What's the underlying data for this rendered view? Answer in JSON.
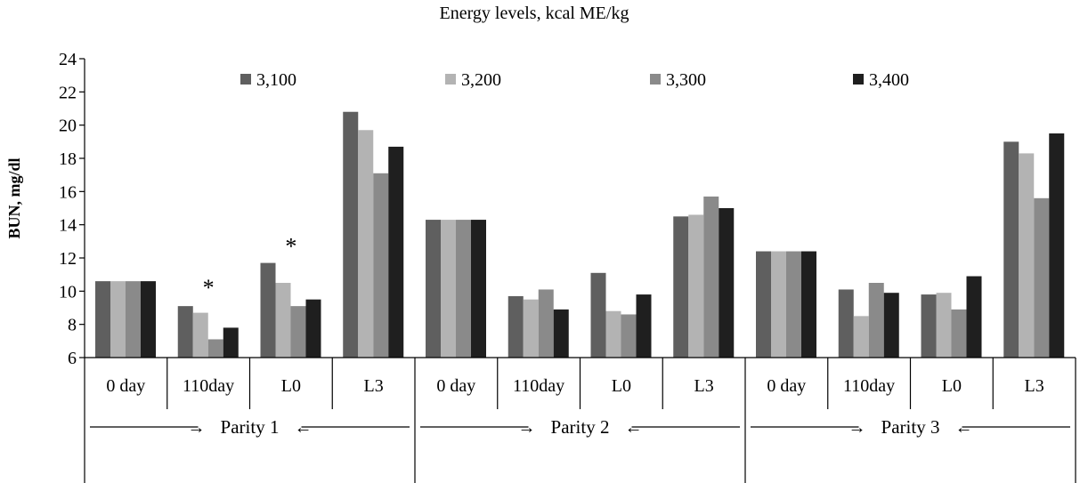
{
  "chart_data": {
    "type": "bar",
    "title": "Energy levels, kcal ME/kg",
    "xlabel": "",
    "ylabel": "BUN, mg/dl",
    "ylim": [
      6,
      24
    ],
    "yticks": [
      6,
      8,
      10,
      12,
      14,
      16,
      18,
      20,
      22,
      24
    ],
    "grid": false,
    "legend_position": "top",
    "categories": [
      "0 day",
      "110day",
      "L0",
      "L3",
      "0 day",
      "110day",
      "L0",
      "L3",
      "0 day",
      "110day",
      "L0",
      "L3"
    ],
    "groups": [
      {
        "label": "Parity 1",
        "arrow_left": "→",
        "arrow_right": "←"
      },
      {
        "label": "Parity 2",
        "arrow_left": "→",
        "arrow_right": "←"
      },
      {
        "label": "Parity 3",
        "arrow_left": "→",
        "arrow_right": "←"
      }
    ],
    "series": [
      {
        "name": "3,100",
        "color": "#5f5f5f",
        "values": [
          10.6,
          9.1,
          11.7,
          20.8,
          14.3,
          9.7,
          11.1,
          14.5,
          12.4,
          10.1,
          9.8,
          19.0
        ]
      },
      {
        "name": "3,200",
        "color": "#b3b3b3",
        "values": [
          10.6,
          8.7,
          10.5,
          19.7,
          14.3,
          9.5,
          8.8,
          14.6,
          12.4,
          8.5,
          9.9,
          18.3
        ]
      },
      {
        "name": "3,300",
        "color": "#8a8a8a",
        "values": [
          10.6,
          7.1,
          9.1,
          17.1,
          14.3,
          10.1,
          8.6,
          15.7,
          12.4,
          10.5,
          8.9,
          15.6
        ]
      },
      {
        "name": "3,400",
        "color": "#1f1f1f",
        "values": [
          10.6,
          7.8,
          9.5,
          18.7,
          14.3,
          8.9,
          9.8,
          15.0,
          12.4,
          9.9,
          10.9,
          19.5
        ]
      }
    ],
    "annotations": [
      {
        "text": "*",
        "category_index": 1,
        "value": 10.5
      },
      {
        "text": "*",
        "category_index": 2,
        "value": 13.0
      }
    ]
  }
}
